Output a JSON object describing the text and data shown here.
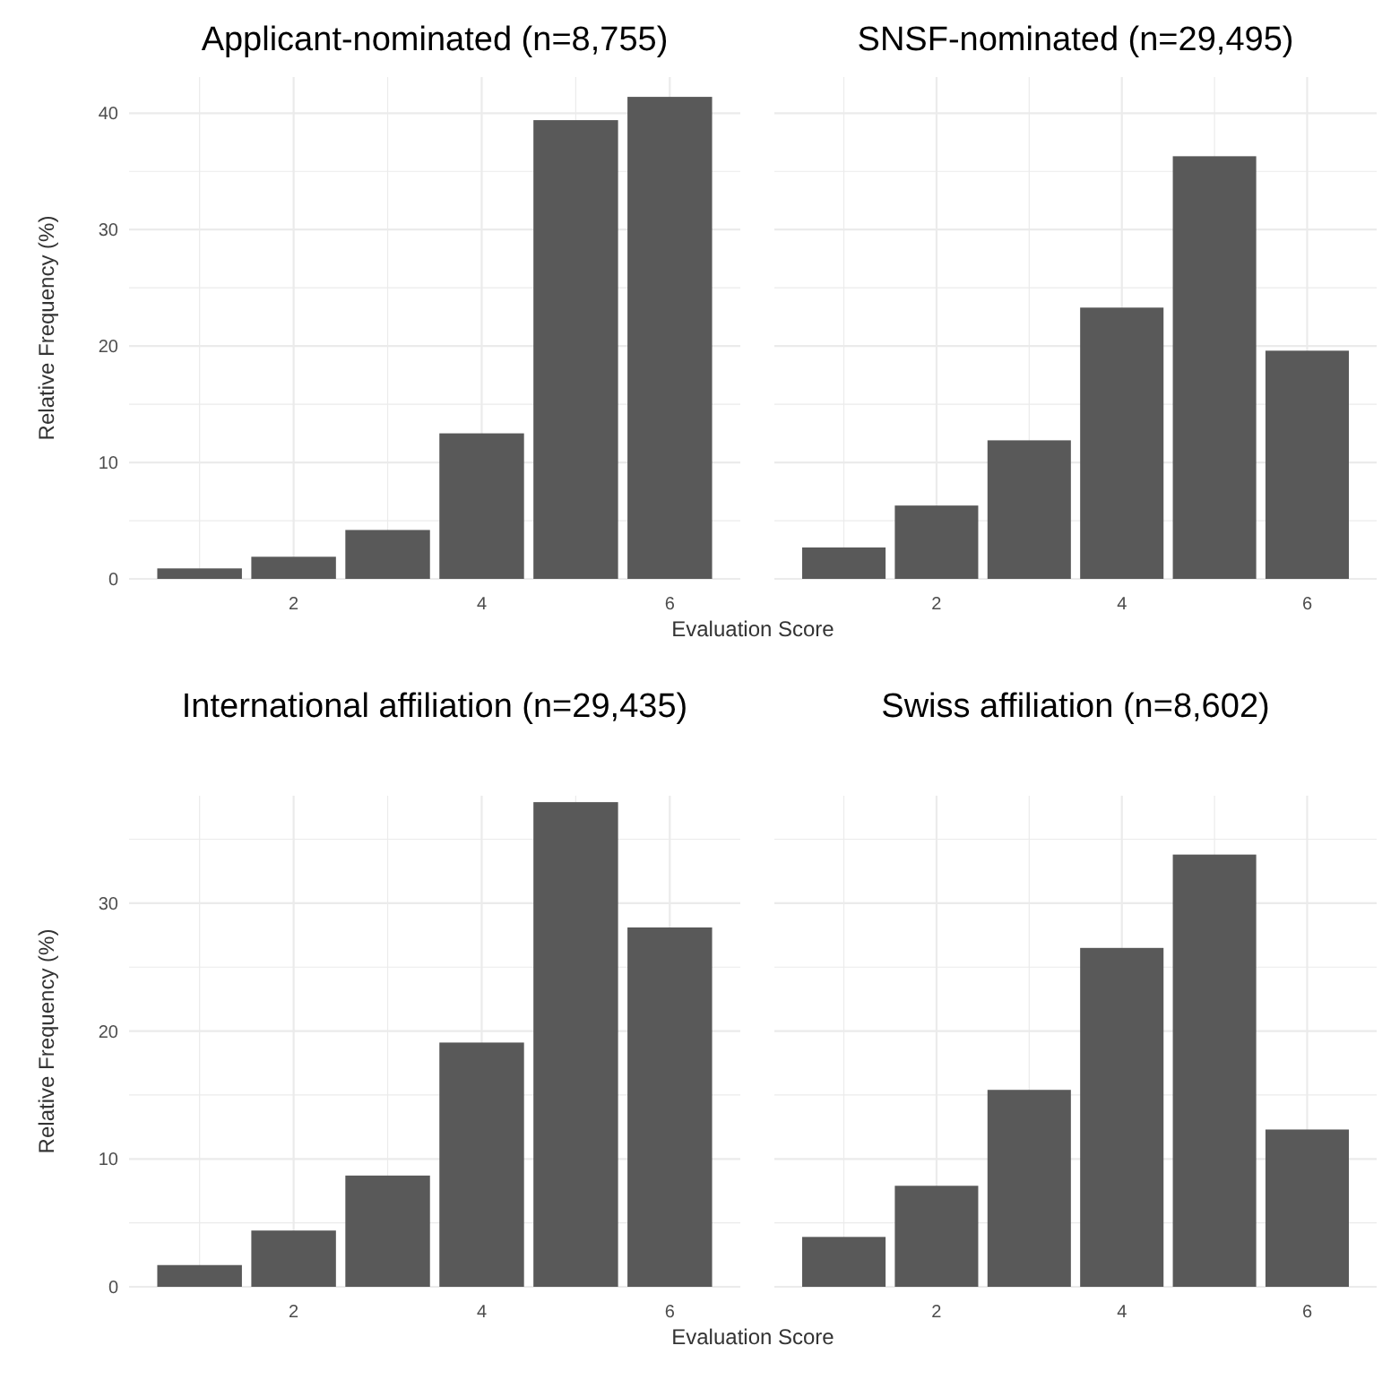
{
  "chart_data": [
    {
      "type": "bar",
      "title": "Applicant-nominated (n=8,755)",
      "ylabel": "Relative Frequency (%)",
      "xlabel": "Evaluation Score",
      "x": [
        1,
        2,
        3,
        4,
        5,
        6
      ],
      "values": [
        0.9,
        1.9,
        4.2,
        12.5,
        39.4,
        41.4
      ],
      "color": "#595959",
      "xlim": [
        0.25,
        6.75
      ],
      "xticks": [
        {
          "value": 1,
          "label": null
        },
        2,
        {
          "value": 3,
          "label": null
        },
        4,
        {
          "value": 5,
          "label": null
        },
        6
      ],
      "ylim": [
        0,
        43.1
      ],
      "yticks": [
        0,
        {
          "value": 5,
          "label": null
        },
        10,
        {
          "value": 15,
          "label": null
        },
        20,
        {
          "value": 25,
          "label": null
        },
        30,
        {
          "value": 35,
          "label": null
        },
        40
      ],
      "grid": true
    },
    {
      "type": "bar",
      "title": "SNSF-nominated (n=29,495)",
      "x": [
        1,
        2,
        3,
        4,
        5,
        6
      ],
      "values": [
        2.7,
        6.3,
        11.9,
        23.3,
        36.3,
        19.6
      ],
      "color": "#595959",
      "xlim": [
        0.25,
        6.75
      ],
      "xticks": [
        {
          "value": 1,
          "label": null
        },
        2,
        {
          "value": 3,
          "label": null
        },
        4,
        {
          "value": 5,
          "label": null
        },
        6
      ],
      "ylim": [
        0,
        43.1
      ],
      "yticks": [
        0,
        {
          "value": 5,
          "label": null
        },
        10,
        {
          "value": 15,
          "label": null
        },
        20,
        {
          "value": 25,
          "label": null
        },
        30,
        {
          "value": 35,
          "label": null
        },
        40
      ],
      "grid": true,
      "tick_labels": "x"
    },
    {
      "type": "bar",
      "title": "International affiliation (n=29,435)",
      "ylabel": "Relative Frequency (%)",
      "xlabel": "Evaluation Score",
      "x": [
        1,
        2,
        3,
        4,
        5,
        6
      ],
      "values": [
        1.7,
        4.4,
        8.7,
        19.1,
        37.9,
        28.1
      ],
      "color": "#595959",
      "xlim": [
        0.25,
        6.75
      ],
      "xticks": [
        {
          "value": 1,
          "label": null
        },
        2,
        {
          "value": 3,
          "label": null
        },
        4,
        {
          "value": 5,
          "label": null
        },
        6
      ],
      "ylim": [
        0,
        38.4
      ],
      "yticks": [
        0,
        {
          "value": 5,
          "label": null
        },
        10,
        {
          "value": 15,
          "label": null
        },
        20,
        {
          "value": 25,
          "label": null
        },
        30,
        {
          "value": 35,
          "label": null
        }
      ],
      "grid": true
    },
    {
      "type": "bar",
      "title": "Swiss affiliation (n=8,602)",
      "x": [
        1,
        2,
        3,
        4,
        5,
        6
      ],
      "values": [
        3.9,
        7.9,
        15.4,
        26.5,
        33.8,
        12.3
      ],
      "color": "#595959",
      "xlim": [
        0.25,
        6.75
      ],
      "xticks": [
        {
          "value": 1,
          "label": null
        },
        2,
        {
          "value": 3,
          "label": null
        },
        4,
        {
          "value": 5,
          "label": null
        },
        6
      ],
      "ylim": [
        0,
        38.4
      ],
      "yticks": [
        0,
        {
          "value": 5,
          "label": null
        },
        10,
        {
          "value": 15,
          "label": null
        },
        20,
        {
          "value": 25,
          "label": null
        },
        30,
        {
          "value": 35,
          "label": null
        }
      ],
      "grid": true,
      "tick_labels": "x"
    }
  ]
}
